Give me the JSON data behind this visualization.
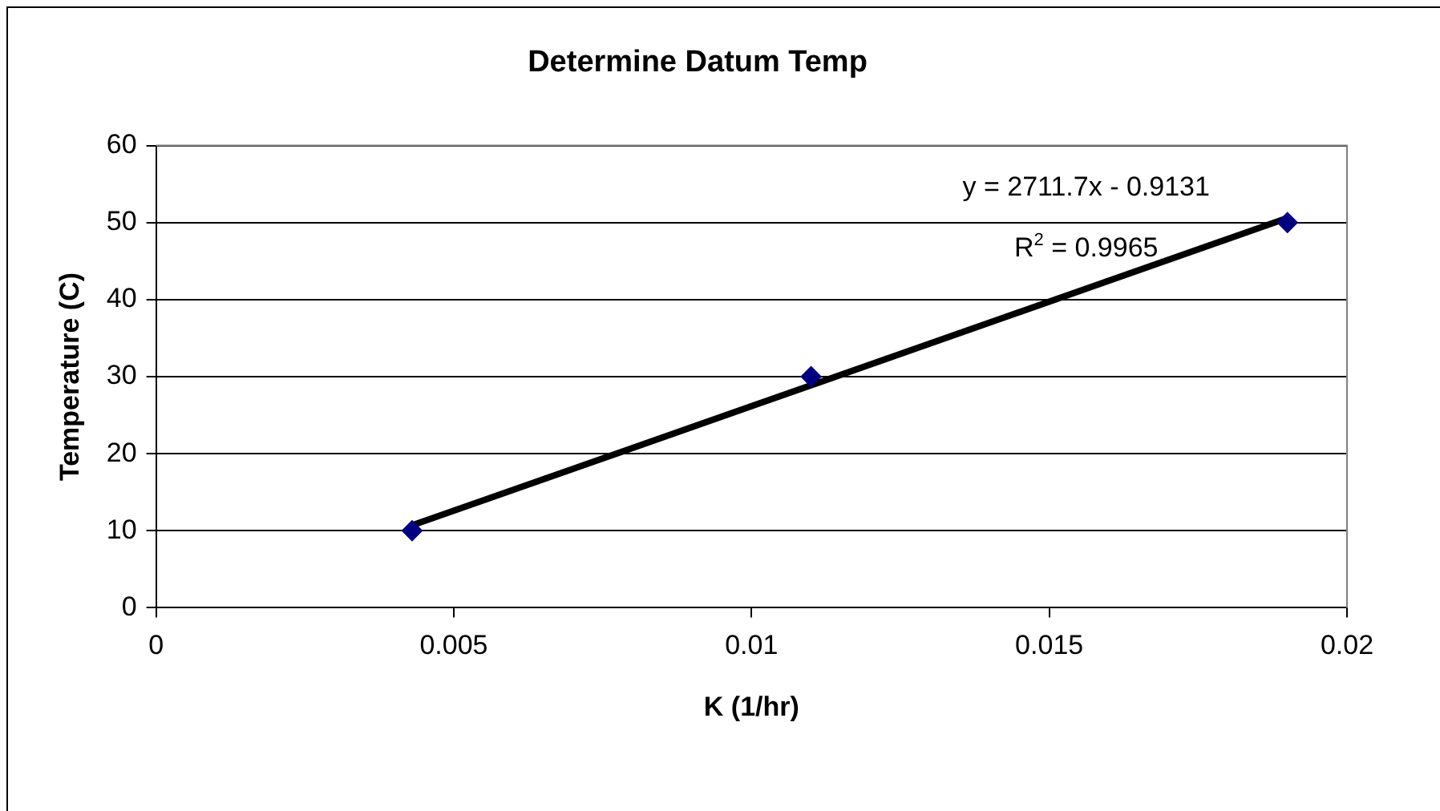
{
  "chart_data": {
    "type": "scatter",
    "title": "Determine Datum Temp",
    "xlabel": "K (1/hr)",
    "ylabel": "Temperature (C)",
    "x": [
      0.0043,
      0.011,
      0.019
    ],
    "series": [
      {
        "color": "#000080",
        "values": [
          10,
          30,
          50
        ]
      },
      {
        "type": "line",
        "color": "#000000",
        "x": [
          0.0043,
          0.019
        ],
        "values": [
          10.7,
          50.6
        ],
        "marker": "none"
      }
    ],
    "xlim": [
      0,
      0.02
    ],
    "xticks": [
      0,
      0.005,
      0.01,
      0.015,
      0.02
    ],
    "ylim": [
      0,
      60
    ],
    "yticks": [
      0,
      10,
      20,
      30,
      40,
      50,
      60
    ],
    "grid": "y",
    "legend": false,
    "marker": "diamond",
    "annotations": [
      "y = 2711.7x - 0.9131",
      "R$^{2}$ = 0.9965"
    ]
  }
}
